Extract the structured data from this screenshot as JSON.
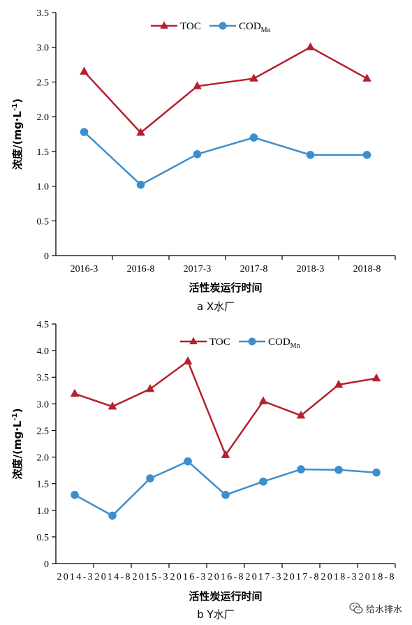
{
  "chart_data": [
    {
      "type": "line",
      "caption": "a X水厂",
      "xlabel": "活性炭运行时间",
      "ylabel": "浓度/(mg·L-1)",
      "ylim": [
        0,
        3.5
      ],
      "yticks": [
        "0",
        "0.5",
        "1.0",
        "1.5",
        "2.0",
        "2.5",
        "3.0",
        "3.5"
      ],
      "categories": [
        "2016-3",
        "2016-8",
        "2017-3",
        "2017-8",
        "2018-3",
        "2018-8"
      ],
      "series": [
        {
          "name": "TOC",
          "values": [
            2.65,
            1.77,
            2.44,
            2.55,
            3.0,
            2.55
          ],
          "color": "#b5202e",
          "marker": "triangle"
        },
        {
          "name": "CODMn",
          "values": [
            1.78,
            1.02,
            1.46,
            1.7,
            1.45,
            1.45
          ],
          "color": "#3c8fce",
          "marker": "circle"
        }
      ],
      "legend": "top"
    },
    {
      "type": "line",
      "caption": "b Y水厂",
      "xlabel": "活性炭运行时间",
      "ylabel": "浓度/(mg·L-1)",
      "ylim": [
        0,
        4.5
      ],
      "yticks": [
        "0",
        "0.5",
        "1.0",
        "1.5",
        "2.0",
        "2.5",
        "3.0",
        "3.5",
        "4.0",
        "4.5"
      ],
      "categories": [
        "2014-3",
        "2014-8",
        "2015-3",
        "2016-3",
        "2016-8",
        "2017-3",
        "2017-8",
        "2018-3",
        "2018-8"
      ],
      "series": [
        {
          "name": "TOC",
          "values": [
            3.19,
            2.95,
            3.28,
            3.8,
            2.04,
            3.05,
            2.78,
            3.36,
            3.48
          ],
          "color": "#b5202e",
          "marker": "triangle"
        },
        {
          "name": "CODMn",
          "values": [
            1.29,
            0.9,
            1.6,
            1.92,
            1.29,
            1.54,
            1.77,
            1.76,
            1.71
          ],
          "color": "#3c8fce",
          "marker": "circle"
        }
      ],
      "legend": "top"
    }
  ],
  "watermark": {
    "text": "给水排水",
    "icon": "wechat-icon"
  }
}
